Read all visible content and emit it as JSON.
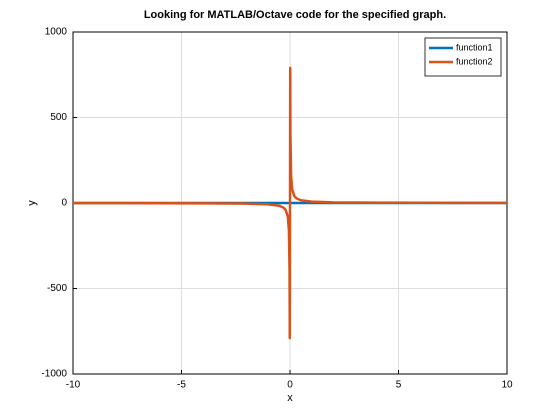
{
  "chart_data": {
    "type": "line",
    "title": "Looking for MATLAB/Octave code for the specified graph.",
    "xlabel": "x",
    "ylabel": "y",
    "x": [
      -10,
      -8,
      -6,
      -4,
      -2,
      -1,
      -0.5,
      -0.3,
      -0.2,
      -0.1,
      -0.05,
      -0.02,
      -0.01,
      0.01,
      0.02,
      0.05,
      0.1,
      0.2,
      0.3,
      0.5,
      1,
      2,
      4,
      6,
      8,
      10
    ],
    "series": [
      {
        "name": "function1",
        "color": "#0072bd",
        "values": [
          0,
          0,
          0,
          0,
          0,
          0,
          0,
          0,
          0,
          0,
          0,
          0,
          0,
          0,
          0,
          0,
          0,
          0,
          0,
          0,
          0,
          0,
          0,
          0,
          0,
          0
        ]
      },
      {
        "name": "function2",
        "color": "#d95319",
        "values": [
          -0.8,
          -1,
          -1.3,
          -2,
          -4,
          -8,
          -16,
          -27,
          -40,
          -80,
          -160,
          -400,
          -790,
          790,
          400,
          160,
          80,
          40,
          27,
          16,
          8,
          4,
          2,
          1.3,
          1,
          0.8
        ]
      }
    ],
    "xlim": [
      -10,
      10
    ],
    "xticks": [
      -10,
      -5,
      0,
      5,
      10
    ],
    "ylim": [
      -1000,
      1000
    ],
    "yticks": [
      -1000,
      -500,
      0,
      500,
      1000
    ],
    "grid": true,
    "legend": "top-right"
  }
}
